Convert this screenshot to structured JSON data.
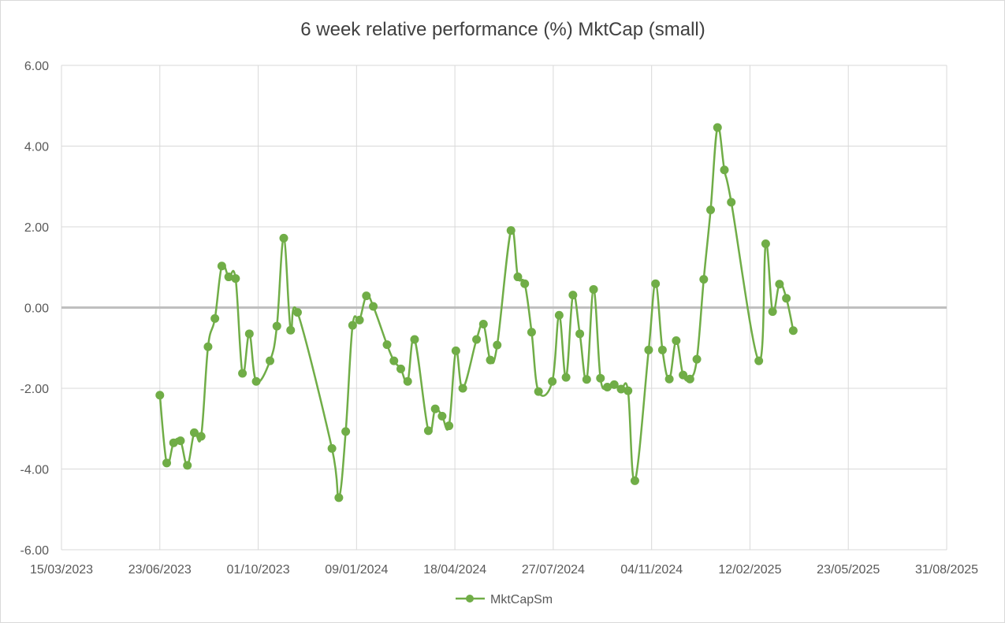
{
  "chart_data": {
    "type": "line",
    "title": "6 week relative performance (%) MktCap (small)",
    "xlabel": "",
    "ylabel": "",
    "ylim": [
      -6,
      6
    ],
    "yticks": [
      -6,
      -4,
      -2,
      0,
      2,
      4,
      6
    ],
    "ytick_labels": [
      "-6.00",
      "-4.00",
      "-2.00",
      "0.00",
      "2.00",
      "4.00",
      "6.00"
    ],
    "xlim": [
      "2023-03-15",
      "2025-08-31"
    ],
    "xticks": [
      "2023-03-15",
      "2023-06-23",
      "2023-10-01",
      "2024-01-09",
      "2024-04-18",
      "2024-07-27",
      "2024-11-04",
      "2025-02-12",
      "2025-05-23",
      "2025-08-31"
    ],
    "xtick_labels": [
      "15/03/2023",
      "23/06/2023",
      "01/10/2023",
      "09/01/2024",
      "18/04/2024",
      "27/07/2024",
      "04/11/2024",
      "12/02/2025",
      "23/05/2025",
      "31/08/2025"
    ],
    "grid": true,
    "legend": "bottom",
    "series_color": "#70ad47",
    "series": [
      {
        "name": "MktCapSm",
        "points": [
          {
            "x": "2023-06-23",
            "y": -2.17
          },
          {
            "x": "2023-06-30",
            "y": -3.85
          },
          {
            "x": "2023-07-07",
            "y": -3.35
          },
          {
            "x": "2023-07-14",
            "y": -3.3
          },
          {
            "x": "2023-07-21",
            "y": -3.91
          },
          {
            "x": "2023-07-28",
            "y": -3.1
          },
          {
            "x": "2023-08-04",
            "y": -3.19
          },
          {
            "x": "2023-08-11",
            "y": -0.97
          },
          {
            "x": "2023-08-18",
            "y": -0.27
          },
          {
            "x": "2023-08-25",
            "y": 1.03
          },
          {
            "x": "2023-09-01",
            "y": 0.76
          },
          {
            "x": "2023-09-08",
            "y": 0.72
          },
          {
            "x": "2023-09-15",
            "y": -1.63
          },
          {
            "x": "2023-09-22",
            "y": -0.65
          },
          {
            "x": "2023-09-29",
            "y": -1.83
          },
          {
            "x": "2023-10-13",
            "y": -1.32
          },
          {
            "x": "2023-10-20",
            "y": -0.46
          },
          {
            "x": "2023-10-27",
            "y": 1.72
          },
          {
            "x": "2023-11-03",
            "y": -0.56
          },
          {
            "x": "2023-11-10",
            "y": -0.12
          },
          {
            "x": "2023-12-15",
            "y": -3.49
          },
          {
            "x": "2023-12-22",
            "y": -4.71
          },
          {
            "x": "2023-12-29",
            "y": -3.07
          },
          {
            "x": "2024-01-05",
            "y": -0.44
          },
          {
            "x": "2024-01-12",
            "y": -0.31
          },
          {
            "x": "2024-01-19",
            "y": 0.29
          },
          {
            "x": "2024-01-26",
            "y": 0.03
          },
          {
            "x": "2024-02-09",
            "y": -0.92
          },
          {
            "x": "2024-02-16",
            "y": -1.32
          },
          {
            "x": "2024-02-23",
            "y": -1.52
          },
          {
            "x": "2024-03-01",
            "y": -1.83
          },
          {
            "x": "2024-03-08",
            "y": -0.79
          },
          {
            "x": "2024-03-22",
            "y": -3.05
          },
          {
            "x": "2024-03-29",
            "y": -2.51
          },
          {
            "x": "2024-04-05",
            "y": -2.69
          },
          {
            "x": "2024-04-12",
            "y": -2.93
          },
          {
            "x": "2024-04-19",
            "y": -1.07
          },
          {
            "x": "2024-04-26",
            "y": -2.0
          },
          {
            "x": "2024-05-10",
            "y": -0.79
          },
          {
            "x": "2024-05-17",
            "y": -0.41
          },
          {
            "x": "2024-05-24",
            "y": -1.3
          },
          {
            "x": "2024-05-31",
            "y": -0.93
          },
          {
            "x": "2024-06-14",
            "y": 1.91
          },
          {
            "x": "2024-06-21",
            "y": 0.76
          },
          {
            "x": "2024-06-28",
            "y": 0.59
          },
          {
            "x": "2024-07-05",
            "y": -0.61
          },
          {
            "x": "2024-07-12",
            "y": -2.08
          },
          {
            "x": "2024-07-26",
            "y": -1.83
          },
          {
            "x": "2024-08-02",
            "y": -0.19
          },
          {
            "x": "2024-08-09",
            "y": -1.73
          },
          {
            "x": "2024-08-16",
            "y": 0.31
          },
          {
            "x": "2024-08-23",
            "y": -0.65
          },
          {
            "x": "2024-08-30",
            "y": -1.78
          },
          {
            "x": "2024-09-06",
            "y": 0.45
          },
          {
            "x": "2024-09-13",
            "y": -1.75
          },
          {
            "x": "2024-09-20",
            "y": -1.97
          },
          {
            "x": "2024-09-27",
            "y": -1.91
          },
          {
            "x": "2024-10-04",
            "y": -2.02
          },
          {
            "x": "2024-10-11",
            "y": -2.06
          },
          {
            "x": "2024-10-18",
            "y": -4.29
          },
          {
            "x": "2024-11-01",
            "y": -1.05
          },
          {
            "x": "2024-11-08",
            "y": 0.59
          },
          {
            "x": "2024-11-15",
            "y": -1.05
          },
          {
            "x": "2024-11-22",
            "y": -1.77
          },
          {
            "x": "2024-11-29",
            "y": -0.82
          },
          {
            "x": "2024-12-06",
            "y": -1.67
          },
          {
            "x": "2024-12-13",
            "y": -1.77
          },
          {
            "x": "2024-12-20",
            "y": -1.28
          },
          {
            "x": "2024-12-27",
            "y": 0.7
          },
          {
            "x": "2025-01-03",
            "y": 2.42
          },
          {
            "x": "2025-01-10",
            "y": 4.46
          },
          {
            "x": "2025-01-17",
            "y": 3.41
          },
          {
            "x": "2025-01-24",
            "y": 2.61
          },
          {
            "x": "2025-02-21",
            "y": -1.32
          },
          {
            "x": "2025-02-28",
            "y": 1.58
          },
          {
            "x": "2025-03-07",
            "y": -0.1
          },
          {
            "x": "2025-03-14",
            "y": 0.58
          },
          {
            "x": "2025-03-21",
            "y": 0.23
          },
          {
            "x": "2025-03-28",
            "y": -0.57
          }
        ]
      }
    ]
  }
}
